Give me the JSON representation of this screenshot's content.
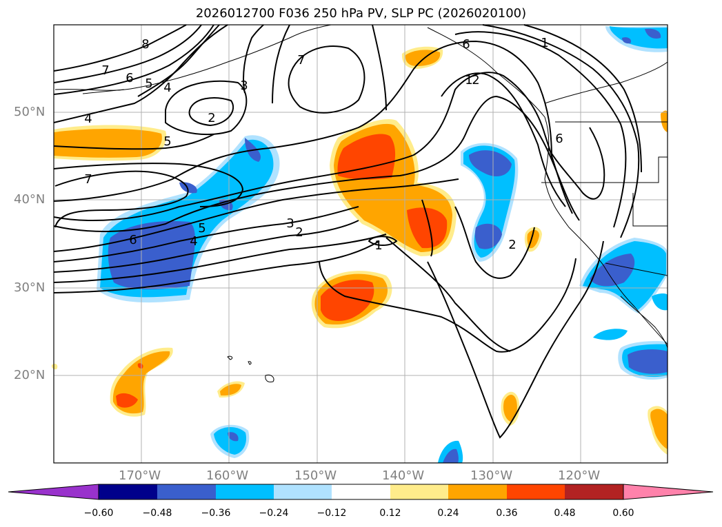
{
  "title": "2026012700 F036 250 hPa PV, SLP PC (2026020100)",
  "map": {
    "lon_range": [
      -180,
      -110
    ],
    "lat_range": [
      10,
      60
    ],
    "lat_labels": [
      "50°N",
      "40°N",
      "30°N",
      "20°N"
    ],
    "lon_labels": [
      "170°W",
      "160°W",
      "150°W",
      "140°W",
      "130°W",
      "120°W"
    ],
    "contour_labels": [
      "8",
      "7",
      "6",
      "5",
      "4",
      "3",
      "2",
      "7",
      "1",
      "2",
      "6",
      "4",
      "5",
      "7",
      "6",
      "4",
      "5",
      "3",
      "2",
      "1",
      "2",
      "6",
      "1"
    ]
  },
  "colorbar": {
    "ticks": [
      "−0.60",
      "−0.48",
      "−0.36",
      "−0.24",
      "−0.12",
      "0.12",
      "0.24",
      "0.36",
      "0.48",
      "0.60"
    ],
    "colors": [
      "#9932cc",
      "#00008b",
      "#3a5fcd",
      "#00bfff",
      "#b0e2ff",
      "#ffffff",
      "#ffec8b",
      "#ffa500",
      "#ff4500",
      "#b22222",
      "#ff82ab"
    ]
  }
}
